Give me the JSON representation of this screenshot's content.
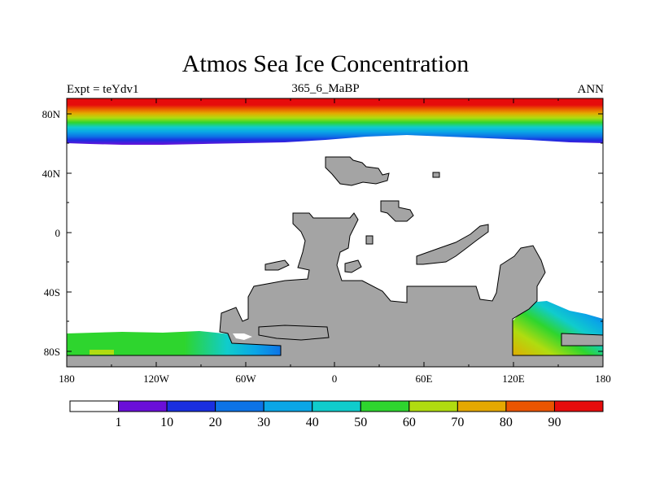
{
  "title": "Atmos Sea Ice Concentration",
  "subtitle_left": "Expt = teYdv1",
  "subtitle_center": "365_6_MaBP",
  "subtitle_right": "ANN",
  "lat_labels": [
    "80N",
    "40N",
    "0",
    "40S",
    "80S"
  ],
  "lon_labels": [
    "180",
    "120W",
    "60W",
    "0",
    "60E",
    "120E",
    "180"
  ],
  "colorbar": {
    "labels": [
      "1",
      "10",
      "20",
      "30",
      "40",
      "50",
      "60",
      "70",
      "80",
      "90"
    ],
    "colors": [
      "#ffffff",
      "#6a0fd8",
      "#1a2fe0",
      "#0d73e6",
      "#0aa6e6",
      "#10cccc",
      "#2ed52e",
      "#b0dc10",
      "#e5a800",
      "#ea5500",
      "#e60c0c"
    ]
  },
  "land_color": "#a4a4a4"
}
